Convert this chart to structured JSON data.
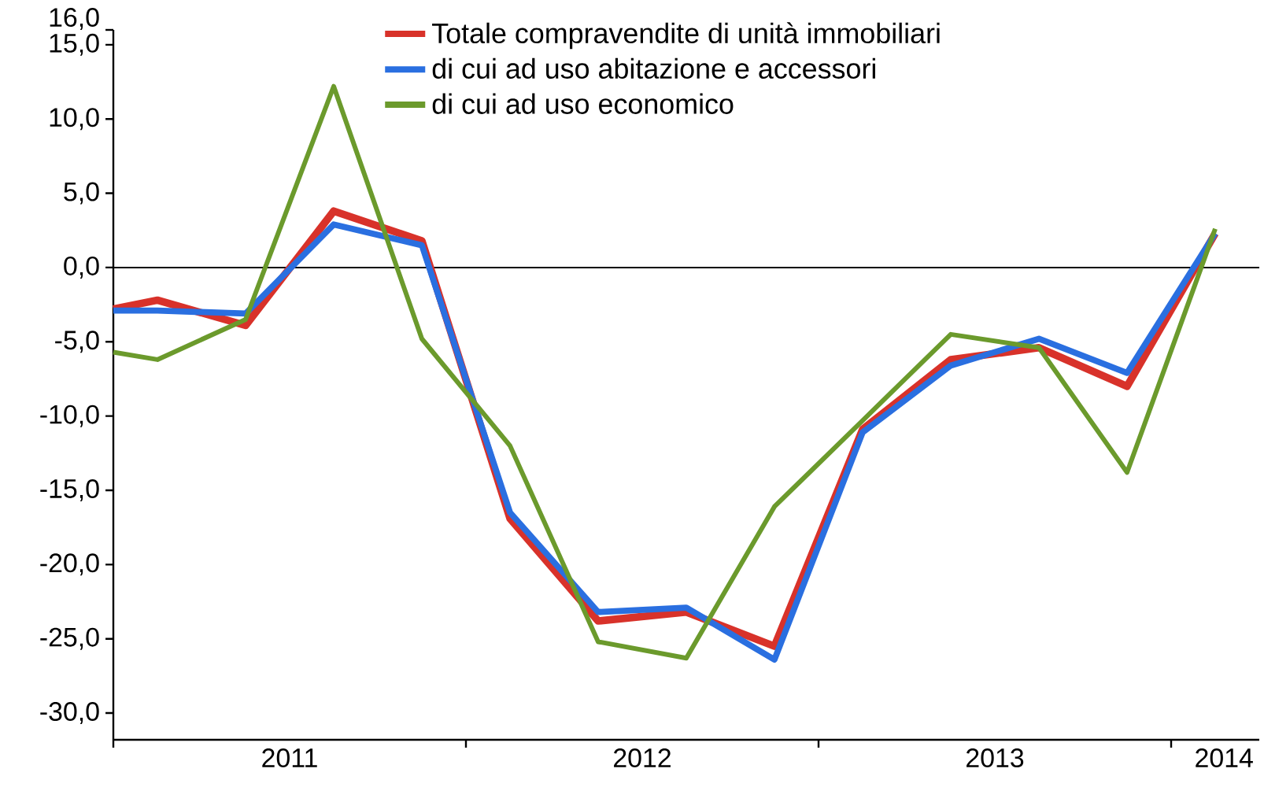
{
  "chart_data": {
    "type": "line",
    "x": [
      2011.0,
      2011.125,
      2011.375,
      2011.625,
      2011.875,
      2012.125,
      2012.375,
      2012.625,
      2012.875,
      2013.125,
      2013.375,
      2013.625,
      2013.875,
      2014.125
    ],
    "series": [
      {
        "name": "Totale compravendite di unità immobiliari",
        "color": "#d8322a",
        "values": [
          -2.8,
          -2.2,
          -3.9,
          3.8,
          1.8,
          -16.9,
          -23.8,
          -23.2,
          -25.5,
          -10.9,
          -6.2,
          -5.4,
          -8.0,
          2.3
        ]
      },
      {
        "name": "di cui ad uso abitazione e accessori",
        "color": "#2a6fe0",
        "values": [
          -2.9,
          -2.9,
          -3.1,
          2.9,
          1.5,
          -16.5,
          -23.2,
          -22.9,
          -26.4,
          -11.1,
          -6.6,
          -4.8,
          -7.1,
          2.3
        ]
      },
      {
        "name": "di cui ad uso economico",
        "color": "#6b9a2c",
        "values": [
          -5.7,
          -6.2,
          -3.5,
          12.2,
          -4.8,
          -12.0,
          -25.2,
          -26.3,
          -16.1,
          -10.3,
          -4.5,
          -5.4,
          -13.8,
          2.6
        ]
      }
    ],
    "xlim": [
      2011.0,
      2014.25
    ],
    "xticks": [
      {
        "value": 2011,
        "label": null
      },
      {
        "value": 2011.5,
        "label": "2011"
      },
      {
        "value": 2012,
        "label": null
      },
      {
        "value": 2012.5,
        "label": "2012"
      },
      {
        "value": 2013,
        "label": null
      },
      {
        "value": 2013.5,
        "label": "2013"
      },
      {
        "value": 2014,
        "label": null
      },
      {
        "value": 2014.15,
        "label": "2014"
      }
    ],
    "ylim": [
      -31.8,
      16
    ],
    "yticks": [
      {
        "value": -30,
        "label": "-30,0"
      },
      {
        "value": -25,
        "label": "-25,0"
      },
      {
        "value": -20,
        "label": "-20,0"
      },
      {
        "value": -15,
        "label": "-15,0"
      },
      {
        "value": -10,
        "label": "-10,0"
      },
      {
        "value": -5,
        "label": "-5,0"
      },
      {
        "value": 0,
        "label": "0,0"
      },
      {
        "value": 5,
        "label": "5,0"
      },
      {
        "value": 10,
        "label": "10,0"
      },
      {
        "value": 15,
        "label": "15,0"
      },
      {
        "value": 16,
        "label": "16,0"
      }
    ],
    "ref_lines": [
      {
        "axis": "y",
        "value": 0,
        "color": "#000000"
      }
    ],
    "legend": "top",
    "grid": false,
    "line_style": "solid",
    "marker": "none"
  }
}
